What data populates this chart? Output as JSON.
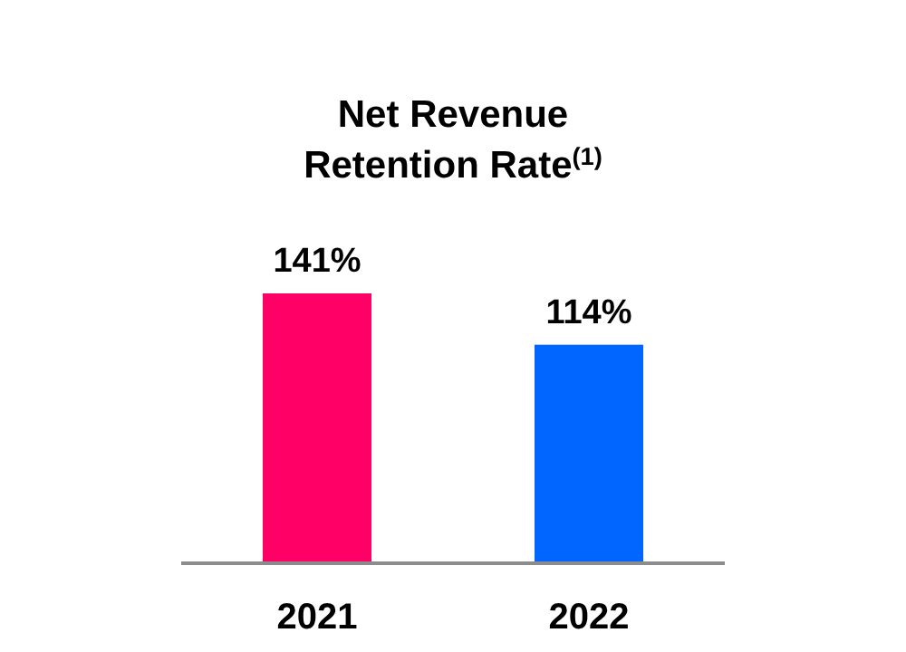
{
  "chart_data": {
    "type": "bar",
    "title": "Net Revenue Retention Rate$^{(1)}$",
    "categories": [
      "2021",
      "2022"
    ],
    "values": [
      141,
      114
    ],
    "colors": [
      "#ff0066",
      "#0066ff"
    ],
    "value_labels": [
      "141%",
      "114%"
    ]
  }
}
